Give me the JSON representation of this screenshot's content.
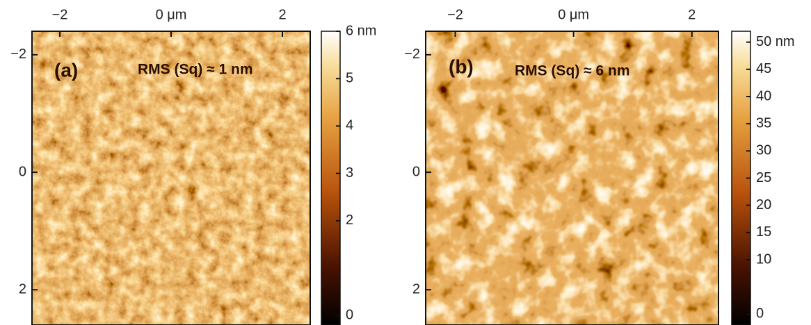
{
  "chart_data": [
    {
      "type": "heatmap",
      "panel_label": "(a)",
      "annotation": "RMS (Sq) ≈ 1 nm",
      "xlim": [
        -2.5,
        2.5
      ],
      "ylim": [
        -2.4,
        2.6
      ],
      "xticks": [
        {
          "value": -2,
          "label": "−2"
        },
        {
          "value": 0,
          "label": "0 μm"
        },
        2
      ],
      "yticks": [
        {
          "value": -2,
          "label": "−2"
        },
        0,
        2
      ],
      "clim": [
        -0.2,
        6
      ],
      "cticks": [
        0,
        2,
        3,
        4,
        5,
        {
          "value": 6,
          "label": "6 nm"
        }
      ]
    },
    {
      "type": "heatmap",
      "panel_label": "(b)",
      "annotation": "RMS (Sq) ≈ 6 nm",
      "xlim": [
        -2.5,
        2.45
      ],
      "ylim": [
        -2.4,
        2.6
      ],
      "xticks": [
        {
          "value": -2,
          "label": "−2"
        },
        {
          "value": 0,
          "label": "0 μm"
        },
        2
      ],
      "yticks": [
        {
          "value": -2,
          "label": "−2"
        },
        0,
        2
      ],
      "clim": [
        -2,
        52
      ],
      "cticks": [
        0,
        10,
        15,
        20,
        25,
        30,
        35,
        40,
        45,
        {
          "value": 50,
          "label": "50 nm"
        }
      ]
    }
  ]
}
